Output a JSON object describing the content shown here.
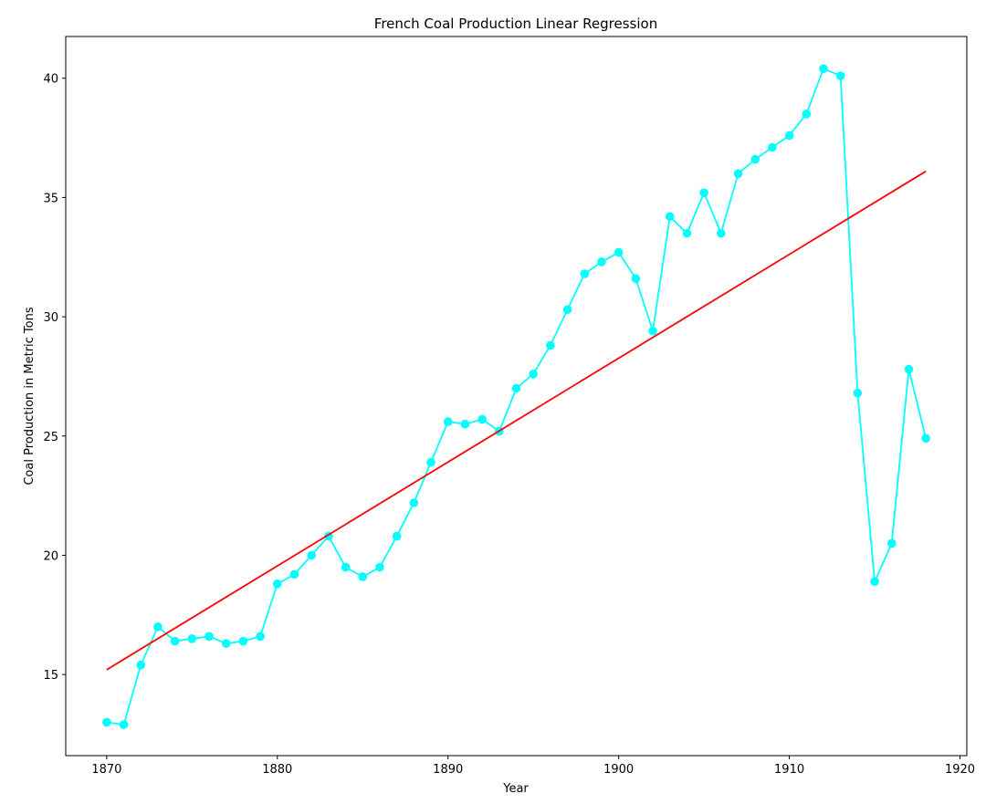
{
  "chart_data": {
    "type": "line",
    "title": "French Coal Production Linear Regression",
    "xlabel": "Year",
    "ylabel": "Coal Production in Metric Tons",
    "xlim": [
      1867.6,
      1920.4
    ],
    "ylim": [
      11.6,
      41.75
    ],
    "xticks": [
      1870,
      1880,
      1890,
      1900,
      1910,
      1920
    ],
    "yticks": [
      15,
      20,
      25,
      30,
      35,
      40
    ],
    "grid": false,
    "legend": "none",
    "series": [
      {
        "kind": "line-with-markers",
        "color": "#00ffff",
        "x": [
          1870,
          1871,
          1872,
          1873,
          1874,
          1875,
          1876,
          1877,
          1878,
          1879,
          1880,
          1881,
          1882,
          1883,
          1884,
          1885,
          1886,
          1887,
          1888,
          1889,
          1890,
          1891,
          1892,
          1893,
          1894,
          1895,
          1896,
          1897,
          1898,
          1899,
          1900,
          1901,
          1902,
          1903,
          1904,
          1905,
          1906,
          1907,
          1908,
          1909,
          1910,
          1911,
          1912,
          1913,
          1914,
          1915,
          1916,
          1917,
          1918
        ],
        "y": [
          13.0,
          12.9,
          15.4,
          17.0,
          16.4,
          16.5,
          16.6,
          16.3,
          16.4,
          16.6,
          18.8,
          19.2,
          20.0,
          20.8,
          19.5,
          19.1,
          19.5,
          20.8,
          22.2,
          23.9,
          25.6,
          25.5,
          25.7,
          25.2,
          27.0,
          27.6,
          28.8,
          30.3,
          31.8,
          32.3,
          32.7,
          31.6,
          29.4,
          34.2,
          33.5,
          35.2,
          33.5,
          36.0,
          36.6,
          37.1,
          37.6,
          38.5,
          40.4,
          40.1,
          26.8,
          18.9,
          20.5,
          27.8,
          24.9
        ]
      },
      {
        "kind": "regression-line",
        "color": "#ff0000",
        "x": [
          1870,
          1918
        ],
        "y": [
          15.2,
          36.1
        ]
      }
    ]
  }
}
